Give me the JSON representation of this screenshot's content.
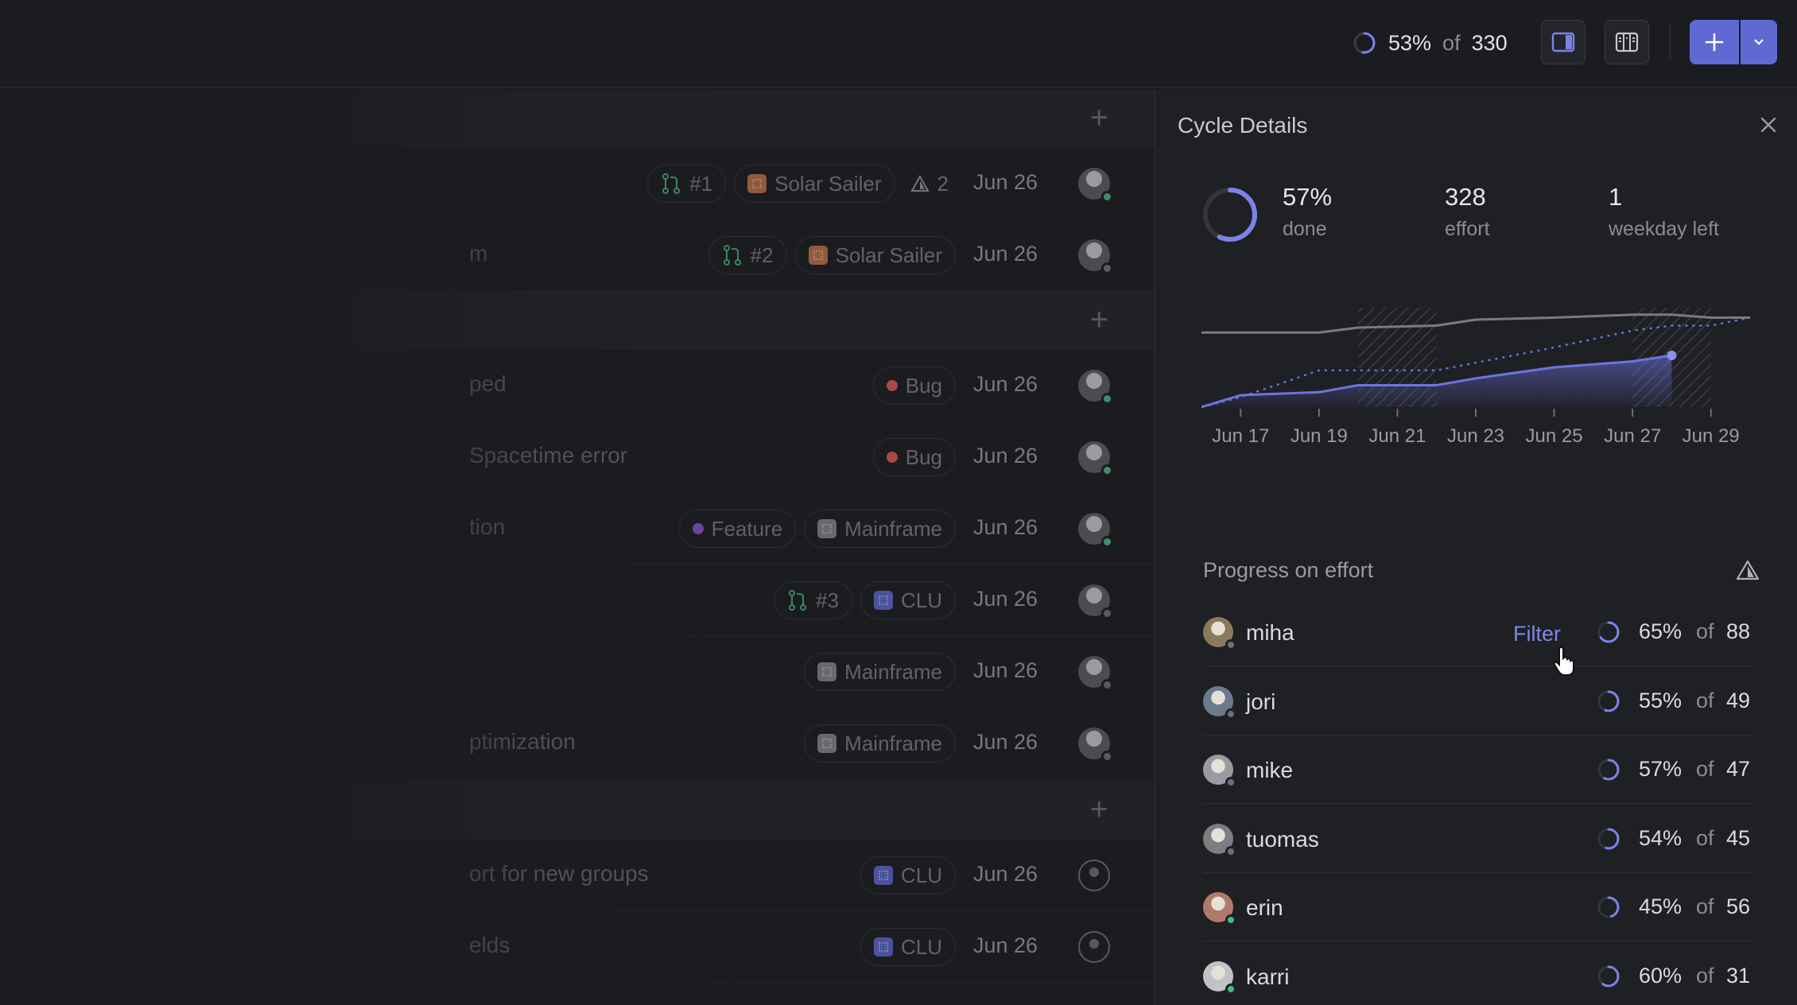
{
  "topbar": {
    "progress_pct": "53%",
    "progress_of": "of",
    "progress_total": "330",
    "progress_fraction": 0.53
  },
  "list": {
    "rows": [
      {
        "title": "",
        "chips": [
          {
            "kind": "pr",
            "label": "#1"
          },
          {
            "kind": "project",
            "label": "Solar Sailer",
            "color": "#c7774a"
          },
          {
            "kind": "warn",
            "label": "2"
          }
        ],
        "date": "Jun 26",
        "status": "#4cb782"
      },
      {
        "title": "m",
        "chips": [
          {
            "kind": "pr",
            "label": "#2"
          },
          {
            "kind": "project",
            "label": "Solar Sailer",
            "color": "#c7774a"
          }
        ],
        "date": "Jun 26",
        "status": "#6e6f76"
      },
      {
        "title": "ped",
        "chips": [
          {
            "kind": "label",
            "label": "Bug",
            "color": "#eb5757"
          }
        ],
        "date": "Jun 26",
        "status": "#4cb782"
      },
      {
        "title": "Spacetime error",
        "chips": [
          {
            "kind": "label",
            "label": "Bug",
            "color": "#eb5757"
          }
        ],
        "date": "Jun 26",
        "status": "#4cb782"
      },
      {
        "title": "tion",
        "chips": [
          {
            "kind": "label",
            "label": "Feature",
            "color": "#8e5bd9"
          },
          {
            "kind": "project",
            "label": "Mainframe",
            "color": "#8a8b92"
          }
        ],
        "date": "Jun 26",
        "status": "#4cb782"
      },
      {
        "title": "",
        "chips": [
          {
            "kind": "pr",
            "label": "#3"
          },
          {
            "kind": "project",
            "label": "CLU",
            "color": "#5e6ad2"
          }
        ],
        "date": "Jun 26",
        "status": "#6e6f76"
      },
      {
        "title": "",
        "chips": [
          {
            "kind": "project",
            "label": "Mainframe",
            "color": "#8a8b92"
          }
        ],
        "date": "Jun 26",
        "status": "#6e6f76"
      },
      {
        "title": "ptimization",
        "chips": [
          {
            "kind": "project",
            "label": "Mainframe",
            "color": "#8a8b92"
          }
        ],
        "date": "Jun 26",
        "status": "#6e6f76"
      },
      {
        "title": "ort for new groups",
        "chips": [
          {
            "kind": "project",
            "label": "CLU",
            "color": "#5e6ad2"
          }
        ],
        "date": "Jun 26",
        "status": ""
      },
      {
        "title": "elds",
        "chips": [
          {
            "kind": "project",
            "label": "CLU",
            "color": "#5e6ad2"
          }
        ],
        "date": "Jun 26",
        "status": ""
      }
    ]
  },
  "panel": {
    "title": "Cycle Details",
    "done_pct": "57%",
    "done_label": "done",
    "done_fraction": 0.57,
    "effort_value": "328",
    "effort_label": "effort",
    "days_value": "1",
    "days_label": "weekday left",
    "section_title": "Progress on effort",
    "filter_label": "Filter",
    "members": [
      {
        "name": "miha",
        "pct": "65%",
        "of": "of",
        "total": "88",
        "fraction": 0.65,
        "status": "#6e6f76",
        "avatar": "#8a7a5c"
      },
      {
        "name": "jori",
        "pct": "55%",
        "of": "of",
        "total": "49",
        "fraction": 0.55,
        "status": "#6e6f76",
        "avatar": "#6b7a8c"
      },
      {
        "name": "mike",
        "pct": "57%",
        "of": "of",
        "total": "47",
        "fraction": 0.57,
        "status": "#6e6f76",
        "avatar": "#9a9ba0"
      },
      {
        "name": "tuomas",
        "pct": "54%",
        "of": "of",
        "total": "45",
        "fraction": 0.54,
        "status": "#6e6f76",
        "avatar": "#7d7e82"
      },
      {
        "name": "erin",
        "pct": "45%",
        "of": "of",
        "total": "56",
        "fraction": 0.45,
        "status": "#4cb782",
        "avatar": "#b07a6a"
      },
      {
        "name": "karri",
        "pct": "60%",
        "of": "of",
        "total": "31",
        "fraction": 0.6,
        "status": "#4cb782",
        "avatar": "#c2c3c7"
      }
    ]
  },
  "chart_data": {
    "type": "line",
    "x_ticks": [
      "Jun 17",
      "Jun 19",
      "Jun 21",
      "Jun 23",
      "Jun 25",
      "Jun 27",
      "Jun 29"
    ],
    "xlim": [
      "Jun 16",
      "Jun 30"
    ],
    "ylim": [
      0,
      100
    ],
    "weekend_bands": [
      [
        "Jun 20",
        "Jun 22"
      ],
      [
        "Jun 27",
        "Jun 29"
      ]
    ],
    "series": [
      {
        "style": "solid-grey",
        "x": [
          "Jun 16",
          "Jun 18",
          "Jun 19",
          "Jun 20",
          "Jun 22",
          "Jun 23",
          "Jun 25",
          "Jun 27",
          "Jun 28",
          "Jun 29",
          "Jun 30"
        ],
        "y": [
          75,
          75,
          75,
          80,
          82,
          88,
          90,
          93,
          93,
          90,
          90
        ]
      },
      {
        "style": "dotted-accent",
        "x": [
          "Jun 16",
          "Jun 17",
          "Jun 19",
          "Jun 20",
          "Jun 22",
          "Jun 25",
          "Jun 27",
          "Jun 28",
          "Jun 29",
          "Jun 30"
        ],
        "y": [
          0,
          10,
          37,
          37,
          37,
          60,
          77,
          82,
          82,
          90
        ]
      },
      {
        "style": "solid-accent-filled",
        "x": [
          "Jun 16",
          "Jun 17",
          "Jun 19",
          "Jun 20",
          "Jun 22",
          "Jun 23",
          "Jun 25",
          "Jun 27",
          "Jun 28"
        ],
        "y": [
          0,
          12,
          15,
          22,
          22,
          29,
          40,
          46,
          52
        ]
      }
    ],
    "colors": {
      "accent": "#6d74e0",
      "grey": "#7a7b82"
    }
  }
}
